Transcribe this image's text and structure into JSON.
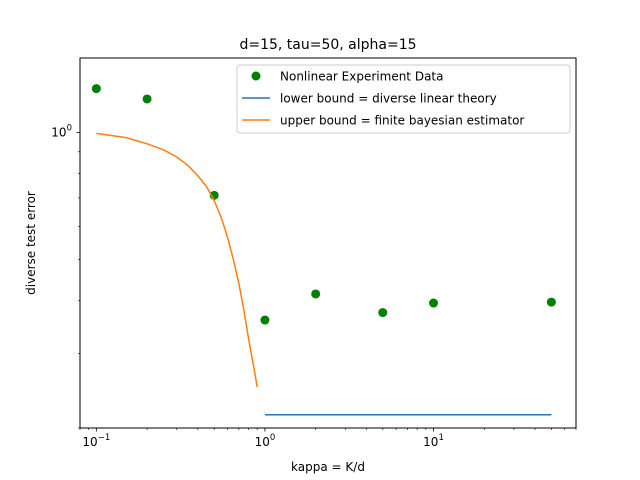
{
  "chart_data": {
    "type": "scatter",
    "title": "d=15, tau=50, alpha=15",
    "xlabel": "kappa = K/d",
    "ylabel": "diverse test error",
    "xscale": "log",
    "yscale": "log",
    "xlim": [
      0.08,
      70
    ],
    "ylim": [
      0.2,
      1.5
    ],
    "x_ticks": [
      {
        "value": 0.1,
        "base": "10",
        "exp": "−1"
      },
      {
        "value": 1,
        "base": "10",
        "exp": "0"
      },
      {
        "value": 10,
        "base": "10",
        "exp": "1"
      }
    ],
    "y_ticks": [
      {
        "value": 1,
        "base": "10",
        "exp": "0"
      }
    ],
    "legend_position": "top-right",
    "series": [
      {
        "name": "Nonlinear Experiment Data",
        "kind": "scatter",
        "color": "#008000",
        "x": [
          0.1,
          0.2,
          0.5,
          1,
          2,
          5,
          10,
          50
        ],
        "y": [
          1.27,
          1.2,
          0.71,
          0.36,
          0.415,
          0.375,
          0.395,
          0.397
        ]
      },
      {
        "name": "lower bound = diverse linear theory",
        "kind": "line",
        "color": "#1f77b4",
        "x": [
          1,
          50
        ],
        "y": [
          0.215,
          0.215
        ]
      },
      {
        "name": "upper bound = finite bayesian estimator",
        "kind": "line",
        "color": "#ff7f0e",
        "x": [
          0.1,
          0.15,
          0.2,
          0.25,
          0.3,
          0.35,
          0.4,
          0.45,
          0.5,
          0.55,
          0.6,
          0.65,
          0.7,
          0.75,
          0.8,
          0.85,
          0.9
        ],
        "y": [
          0.995,
          0.972,
          0.94,
          0.91,
          0.875,
          0.835,
          0.79,
          0.745,
          0.69,
          0.63,
          0.565,
          0.5,
          0.44,
          0.38,
          0.325,
          0.285,
          0.25
        ]
      }
    ]
  }
}
